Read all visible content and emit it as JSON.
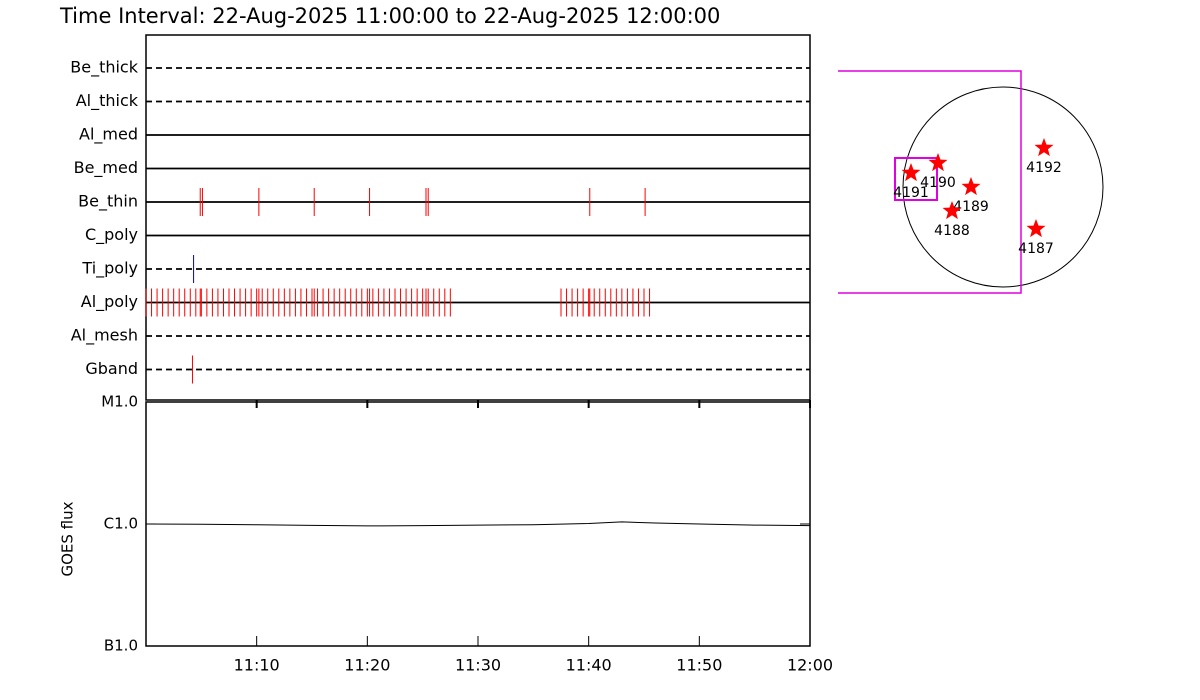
{
  "title": "Time Interval: 22-Aug-2025 11:00:00 to 22-Aug-2025 12:00:00",
  "chart_data": [
    {
      "type": "timeline",
      "xlim": [
        0,
        60
      ],
      "filters": [
        {
          "name": "Be_thick",
          "dashed": true,
          "color": "#ff0000",
          "events": []
        },
        {
          "name": "Al_thick",
          "dashed": true,
          "color": "#ff0000",
          "events": []
        },
        {
          "name": "Al_med",
          "dashed": false,
          "color": "#ff0000",
          "events": []
        },
        {
          "name": "Be_med",
          "dashed": false,
          "color": "#ff0000",
          "events": []
        },
        {
          "name": "Be_thin",
          "dashed": false,
          "color": "#ff0000",
          "events": [
            4.9,
            5.1,
            10.2,
            15.2,
            20.2,
            25.3,
            25.5,
            40.1,
            45.1
          ]
        },
        {
          "name": "C_poly",
          "dashed": false,
          "color": "#ff0000",
          "events": []
        },
        {
          "name": "Ti_poly",
          "dashed": true,
          "color": "#0000cc",
          "events": [
            4.3
          ]
        },
        {
          "name": "Al_poly",
          "dashed": false,
          "color": "#ff0000",
          "events": [
            0.0,
            0.5,
            1.0,
            1.5,
            2.0,
            2.5,
            3.0,
            3.5,
            4.0,
            4.5,
            4.9,
            5.0,
            5.5,
            6.0,
            6.5,
            7.0,
            7.5,
            8.0,
            8.5,
            9.0,
            9.5,
            10.0,
            10.2,
            10.5,
            11.0,
            11.5,
            12.0,
            12.5,
            13.0,
            13.5,
            14.0,
            14.5,
            15.0,
            15.2,
            15.5,
            16.0,
            16.5,
            17.0,
            17.5,
            18.0,
            18.5,
            19.0,
            19.5,
            20.0,
            20.2,
            20.5,
            21.0,
            21.5,
            22.0,
            22.5,
            23.0,
            23.5,
            24.0,
            24.5,
            25.0,
            25.3,
            25.5,
            26.0,
            26.5,
            27.0,
            27.5,
            37.5,
            38.0,
            38.5,
            39.0,
            39.5,
            40.0,
            40.1,
            40.5,
            41.0,
            41.5,
            42.0,
            42.5,
            43.0,
            43.5,
            44.0,
            44.5,
            45.0,
            45.5
          ]
        },
        {
          "name": "Al_mesh",
          "dashed": true,
          "color": "#ff0000",
          "events": []
        },
        {
          "name": "Gband",
          "dashed": true,
          "color": "#ff0000",
          "events": [
            4.2
          ]
        }
      ]
    },
    {
      "type": "line",
      "ylabel": "GOES flux",
      "log_scale": true,
      "x": [
        0,
        5,
        10,
        15,
        20,
        25,
        30,
        35,
        40,
        43,
        46,
        50,
        55,
        60
      ],
      "values": [
        1e-06,
        9.95e-07,
        9.85e-07,
        9.75e-07,
        9.65e-07,
        9.7e-07,
        9.8e-07,
        9.85e-07,
        1.01e-06,
        1.04e-06,
        1.02e-06,
        1e-06,
        9.8e-07,
        9.7e-07
      ],
      "color": "#000000",
      "xlim": [
        0,
        60
      ],
      "xticks": [
        {
          "value": 10,
          "label": "11:10"
        },
        {
          "value": 20,
          "label": "11:20"
        },
        {
          "value": 30,
          "label": "11:30"
        },
        {
          "value": 40,
          "label": "11:40"
        },
        {
          "value": 50,
          "label": "11:50"
        },
        {
          "value": 60,
          "label": "12:00"
        }
      ],
      "ylim": [
        1e-07,
        1e-05
      ],
      "yticks": [
        {
          "value": 1e-07,
          "label": "B1.0"
        },
        {
          "value": 1e-06,
          "label": "C1.0"
        },
        {
          "value": 1e-05,
          "label": "M1.0"
        }
      ]
    },
    {
      "type": "map",
      "regions": [
        "4192",
        "4190",
        "4191",
        "4189",
        "4188",
        "4187"
      ],
      "color": "#ff0000"
    }
  ]
}
